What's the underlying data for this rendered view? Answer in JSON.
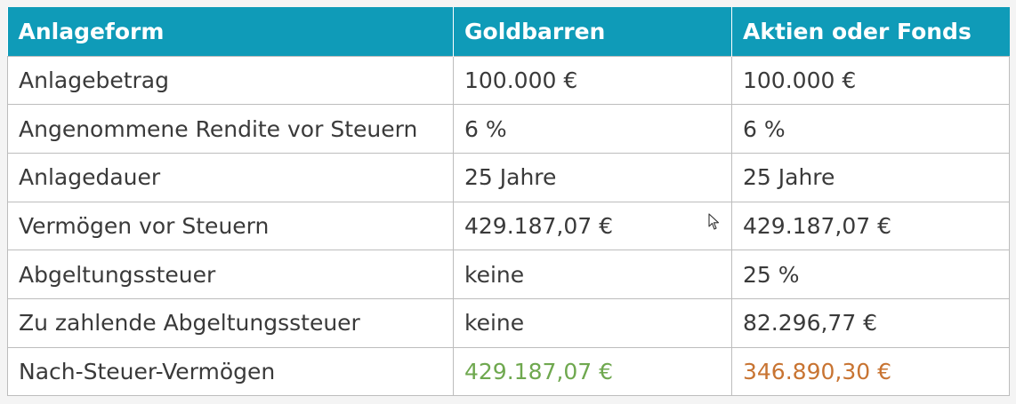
{
  "table": {
    "headers": [
      "Anlageform",
      "Goldbarren",
      "Aktien oder Fonds"
    ],
    "rows": [
      [
        "Anlagebetrag",
        "100.000 €",
        "100.000 €"
      ],
      [
        "Angenommene Rendite vor Steuern",
        "6 %",
        "6 %"
      ],
      [
        "Anlagedauer",
        "25 Jahre",
        "25 Jahre"
      ],
      [
        "Vermögen vor Steuern",
        "429.187,07 €",
        "429.187,07 €"
      ],
      [
        "Abgeltungssteuer",
        "keine",
        "25 %"
      ],
      [
        "Zu zahlende Abgeltungssteuer",
        "keine",
        "82.296,77 €"
      ],
      [
        "Nach-Steuer-Vermögen",
        "429.187,07 €",
        "346.890,30 €"
      ]
    ]
  },
  "colors": {
    "header_bg": "#0f9bb8",
    "gold_result": "#6fa84f",
    "fonds_result": "#c87432"
  },
  "icons": {
    "cursor": "mouse-pointer-icon"
  }
}
